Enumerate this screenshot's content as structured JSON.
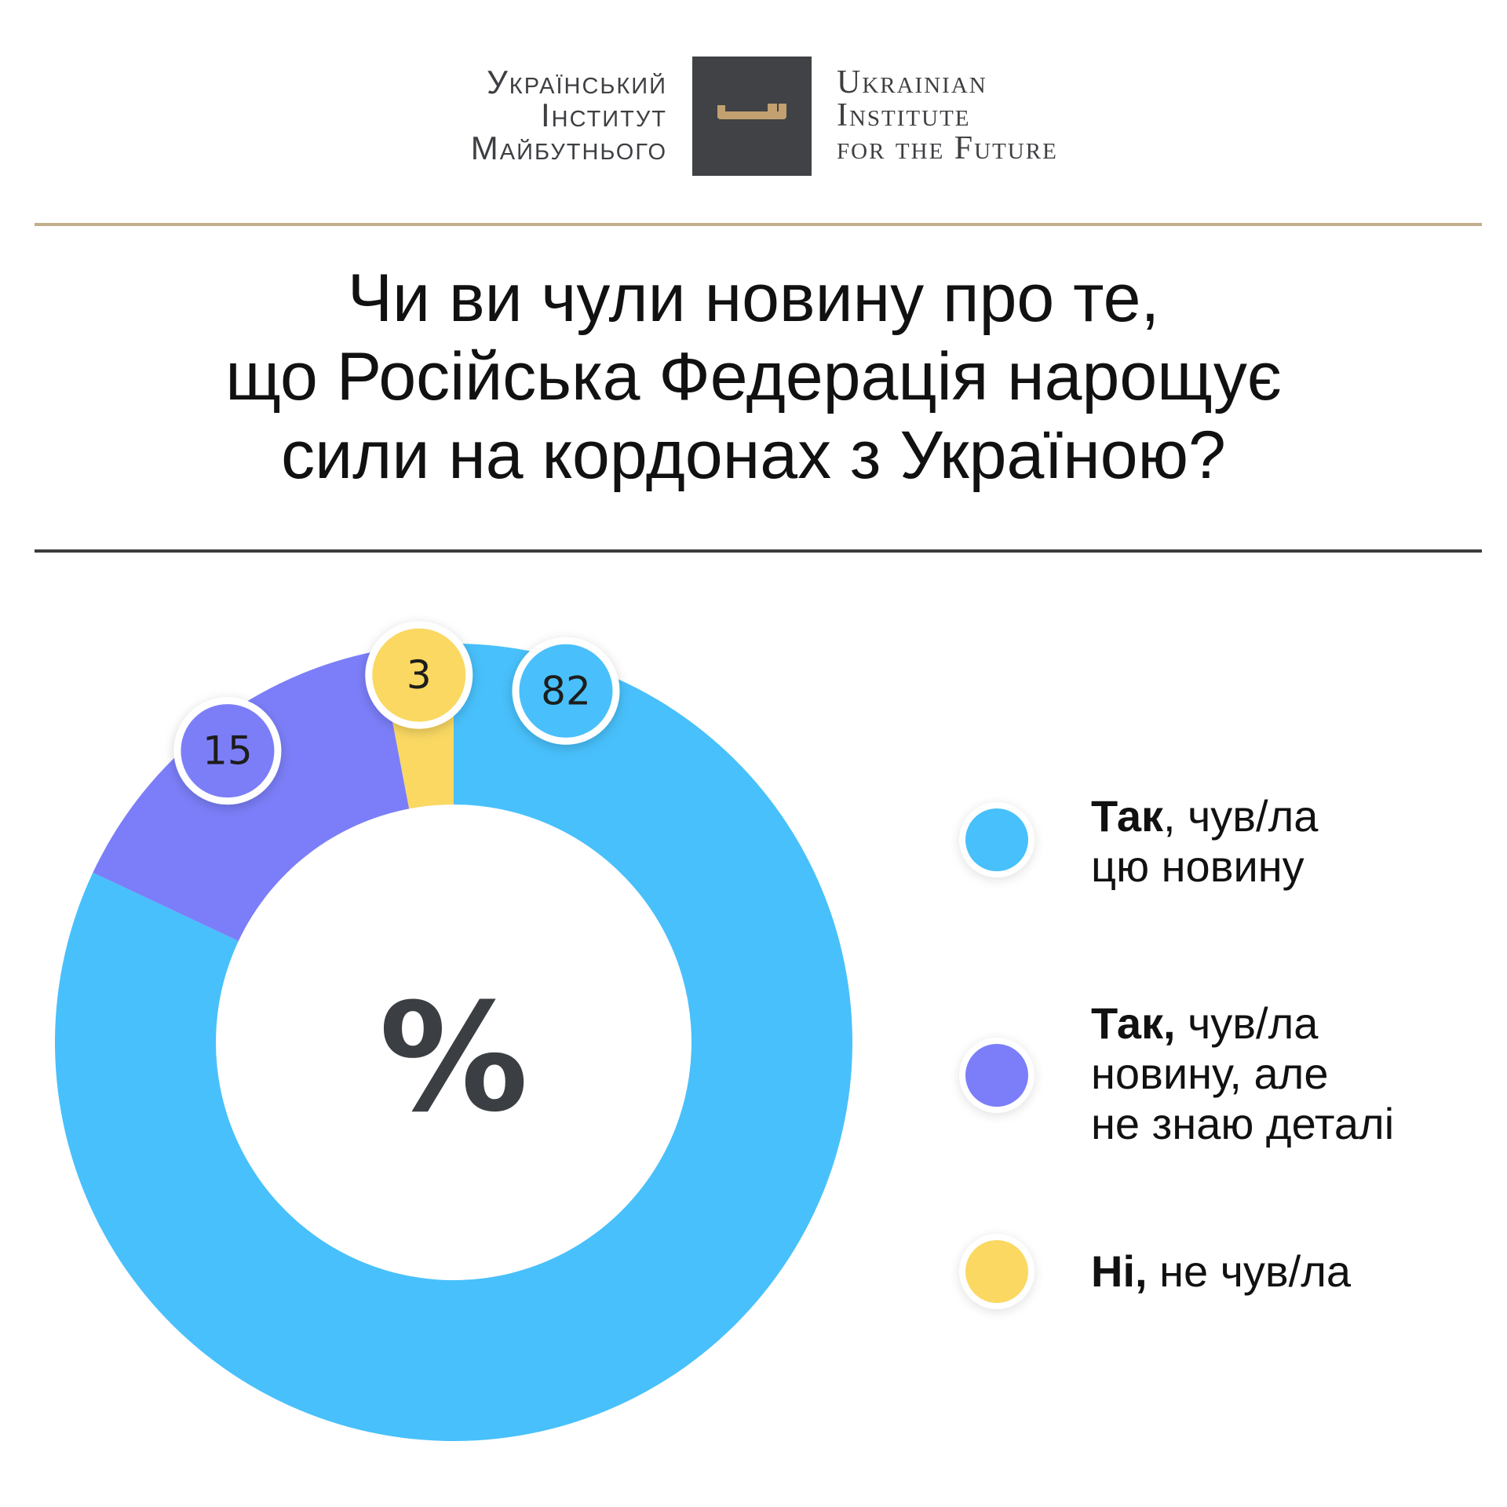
{
  "logo": {
    "ua_lines": [
      "Український",
      "Інститут",
      "Майбутнього"
    ],
    "en_lines": [
      "Ukrainian",
      "Institute",
      "for the Future"
    ],
    "box_color": "#404245",
    "key_color": "#c2a070",
    "key_icon": "key-icon"
  },
  "question": {
    "lines": [
      "Чи ви чули новину про те,",
      "що Російська Федерація нарощує",
      "сили на кордонах з Україною?"
    ]
  },
  "chart_data": {
    "type": "pie",
    "donut": true,
    "center_label": "%",
    "categories": [
      "Так, чув/ла цю новину",
      "Так, чув/ла новину, але не знаю деталі",
      "Ні, не чув/ла"
    ],
    "values": [
      82,
      15,
      3
    ],
    "colors": [
      "#48c0fb",
      "#7b7ef8",
      "#fad862"
    ],
    "data_labels": [
      "82",
      "15",
      "3"
    ],
    "unit": "%",
    "legend_position": "right"
  },
  "legend": [
    {
      "bold": "Так",
      "rest_lines": [
        ", чув/ла",
        "цю новину"
      ],
      "color": "#48c0fb"
    },
    {
      "bold": "Так,",
      "rest_lines": [
        " чув/ла",
        "новину, але",
        "не знаю деталі"
      ],
      "color": "#7b7ef8"
    },
    {
      "bold": "Ні,",
      "rest_lines": [
        " не чув/ла"
      ],
      "color": "#fad862"
    }
  ]
}
